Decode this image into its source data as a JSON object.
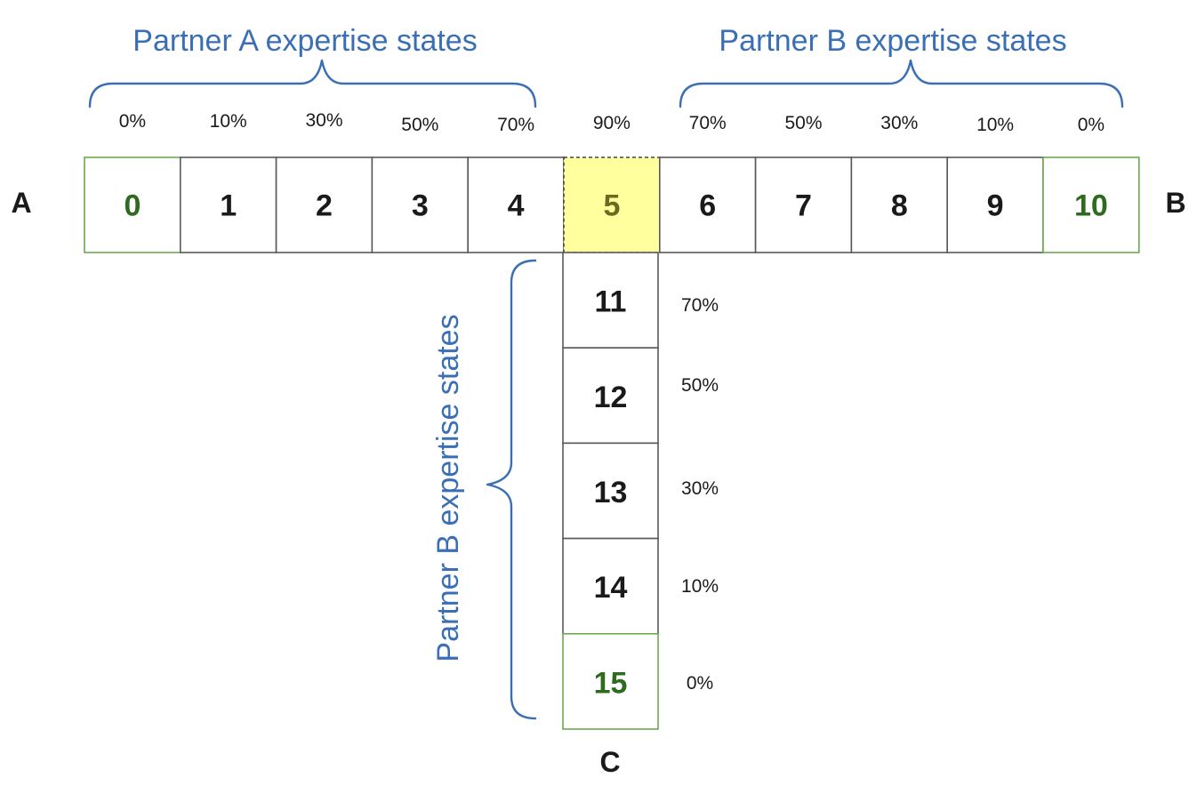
{
  "end_labels": {
    "a": "A",
    "b": "B",
    "c": "C"
  },
  "group_labels": {
    "top_left": "Partner A expertise states",
    "top_right": "Partner B expertise states",
    "vertical": "Partner B expertise states"
  },
  "horizontal_cells": [
    {
      "id": "0",
      "pct": "0%",
      "kind": "terminal"
    },
    {
      "id": "1",
      "pct": "10%",
      "kind": "normal"
    },
    {
      "id": "2",
      "pct": "30%",
      "kind": "normal"
    },
    {
      "id": "3",
      "pct": "50%",
      "kind": "normal"
    },
    {
      "id": "4",
      "pct": "70%",
      "kind": "normal"
    },
    {
      "id": "5",
      "pct": "90%",
      "kind": "start"
    },
    {
      "id": "6",
      "pct": "70%",
      "kind": "normal"
    },
    {
      "id": "7",
      "pct": "50%",
      "kind": "normal"
    },
    {
      "id": "8",
      "pct": "30%",
      "kind": "normal"
    },
    {
      "id": "9",
      "pct": "10%",
      "kind": "normal"
    },
    {
      "id": "10",
      "pct": "0%",
      "kind": "terminal"
    }
  ],
  "vertical_cells": [
    {
      "id": "11",
      "pct": "70%",
      "kind": "normal"
    },
    {
      "id": "12",
      "pct": "50%",
      "kind": "normal"
    },
    {
      "id": "13",
      "pct": "30%",
      "kind": "normal"
    },
    {
      "id": "14",
      "pct": "10%",
      "kind": "normal"
    },
    {
      "id": "15",
      "pct": "0%",
      "kind": "terminal"
    }
  ],
  "colors": {
    "label_blue": "#3a6fb5",
    "terminal_green": "#6aa84f",
    "start_yellow": "#ffff9e"
  }
}
